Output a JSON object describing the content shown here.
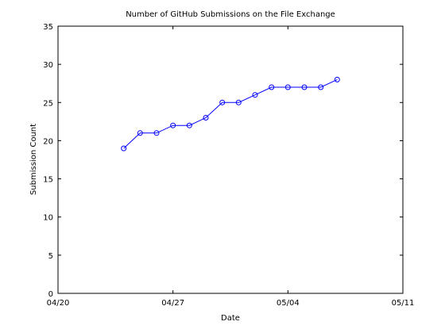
{
  "chart_data": {
    "type": "line",
    "title": "Number of GitHub Submissions on the File Exchange",
    "xlabel": "Date",
    "ylabel": "Submission Count",
    "xlim": [
      "2012-04-20",
      "2012-05-11"
    ],
    "ylim": [
      0,
      35
    ],
    "xticks": [
      "04/20",
      "04/27",
      "05/04",
      "05/11"
    ],
    "yticks": [
      0,
      5,
      10,
      15,
      20,
      25,
      30,
      35
    ],
    "grid": false,
    "legend": false,
    "line_color": "#0000ff",
    "marker": "circle",
    "x": [
      "2012-04-24",
      "2012-04-25",
      "2012-04-26",
      "2012-04-27",
      "2012-04-28",
      "2012-04-29",
      "2012-04-30",
      "2012-05-01",
      "2012-05-02",
      "2012-05-03",
      "2012-05-04",
      "2012-05-05",
      "2012-05-06",
      "2012-05-07"
    ],
    "series": [
      {
        "values": [
          19,
          21,
          21,
          22,
          22,
          23,
          25,
          25,
          26,
          27,
          27,
          27,
          27,
          28
        ]
      }
    ]
  }
}
